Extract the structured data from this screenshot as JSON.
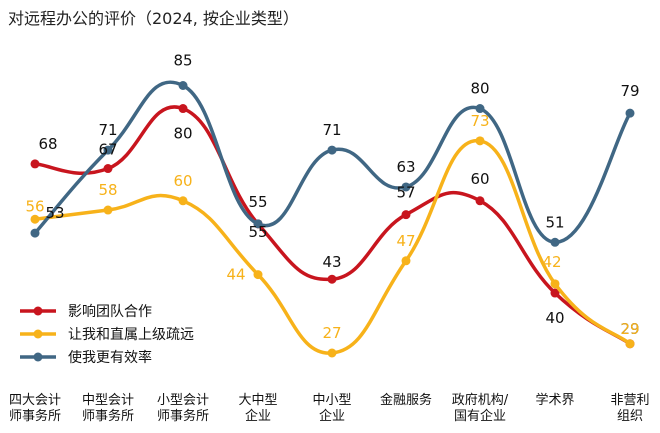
{
  "chart_data": {
    "type": "line",
    "title": "对远程办公的评价（2024, 按企业类型）",
    "categories": [
      [
        "四大会计",
        "师事务所"
      ],
      [
        "中型会计",
        "师事务所"
      ],
      [
        "小型会计",
        "师事务所"
      ],
      [
        "大中型",
        "企业"
      ],
      [
        "中小型",
        "企业"
      ],
      [
        "金融服务"
      ],
      [
        "政府机构/",
        "国有企业"
      ],
      [
        "学术界"
      ],
      [
        "非营利",
        "组织"
      ]
    ],
    "ylim": [
      20,
      90
    ],
    "xlabel": "",
    "ylabel": "",
    "legend_position": "bottom-left",
    "series": [
      {
        "name": "影响团队合作",
        "color": "#c8151e",
        "values": [
          68,
          67,
          80,
          55,
          43,
          57,
          60,
          40,
          29
        ]
      },
      {
        "name": "让我和直属上级疏远",
        "color": "#f7b21a",
        "values": [
          56,
          58,
          60,
          44,
          27,
          47,
          73,
          42,
          29
        ]
      },
      {
        "name": "使我更有效率",
        "color": "#406784",
        "values": [
          53,
          71,
          85,
          55,
          71,
          63,
          80,
          51,
          79
        ]
      }
    ]
  }
}
